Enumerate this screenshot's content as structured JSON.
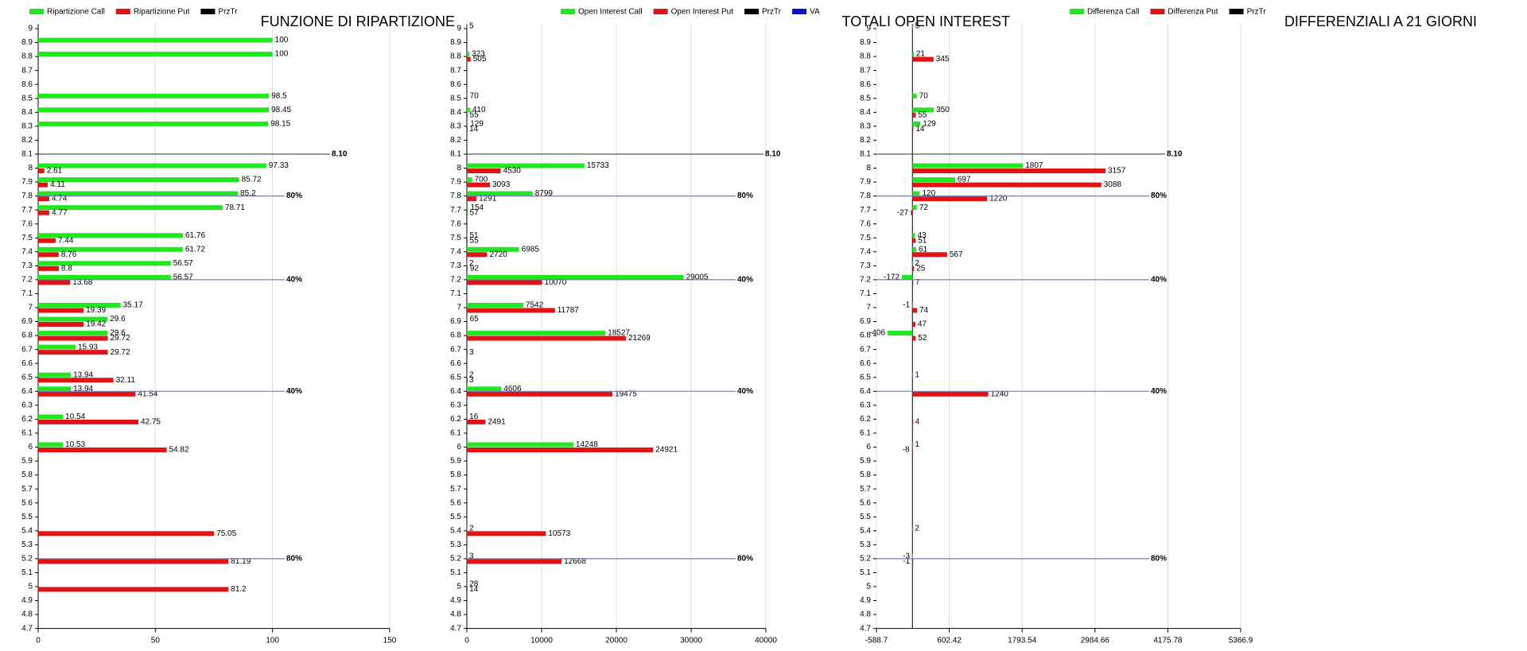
{
  "chart_data": [
    {
      "type": "bar",
      "orientation": "horizontal",
      "title": "FUNZIONE DI RIPARTIZIONE",
      "categories": [
        "9",
        "8.9",
        "8.8",
        "8.7",
        "8.6",
        "8.5",
        "8.4",
        "8.3",
        "8.2",
        "8.1",
        "8",
        "7.9",
        "7.8",
        "7.7",
        "7.6",
        "7.5",
        "7.4",
        "7.3",
        "7.2",
        "7.1",
        "7",
        "6.9",
        "6.8",
        "6.7",
        "6.6",
        "6.5",
        "6.4",
        "6.3",
        "6.2",
        "6.1",
        "6",
        "5.9",
        "5.8",
        "5.7",
        "5.6",
        "5.5",
        "5.4",
        "5.3",
        "5.2",
        "5.1",
        "5",
        "4.9",
        "4.8",
        "4.7"
      ],
      "series": [
        {
          "name": "Ripartizione Call",
          "color": "#22e622",
          "values": [
            null,
            100,
            100,
            null,
            null,
            98.5,
            98.45,
            98.15,
            null,
            null,
            97.33,
            85.72,
            85.2,
            78.71,
            null,
            61.76,
            61.72,
            56.57,
            56.57,
            null,
            35.17,
            29.6,
            29.6,
            15.93,
            null,
            13.94,
            13.94,
            null,
            10.54,
            null,
            10.53,
            null,
            null,
            null,
            null,
            null,
            null,
            null,
            null,
            null,
            null,
            null,
            null,
            null
          ]
        },
        {
          "name": "Ripartizione Put",
          "color": "#e01414",
          "values": [
            null,
            null,
            null,
            null,
            null,
            null,
            null,
            null,
            null,
            null,
            2.61,
            4.11,
            4.74,
            4.77,
            null,
            7.44,
            8.76,
            8.8,
            13.68,
            null,
            19.39,
            19.42,
            29.72,
            29.72,
            null,
            32.11,
            41.54,
            null,
            42.75,
            null,
            54.82,
            null,
            null,
            null,
            null,
            null,
            75.05,
            null,
            81.19,
            null,
            81.2,
            null,
            null,
            null
          ]
        }
      ],
      "legend_markers": [
        {
          "name": "PrzTr",
          "color": "#000000"
        }
      ],
      "xlim": [
        0,
        150
      ],
      "xticks": [
        0,
        50,
        100,
        150
      ],
      "grid": true,
      "reference_lines": [
        {
          "at": 8.1,
          "label": "8.10",
          "color": "#444444"
        },
        {
          "at": 7.8,
          "label": "80%",
          "color": "#7c7cb4"
        },
        {
          "at": 7.2,
          "label": "40%",
          "color": "#7c7cb4"
        },
        {
          "at": 6.4,
          "label": "40%",
          "color": "#7c7cb4"
        },
        {
          "at": 5.2,
          "label": "80%",
          "color": "#7c7cb4"
        }
      ]
    },
    {
      "type": "bar",
      "orientation": "horizontal",
      "title": "TOTALI OPEN INTEREST",
      "categories": [
        "9",
        "8.9",
        "8.8",
        "8.7",
        "8.6",
        "8.5",
        "8.4",
        "8.3",
        "8.2",
        "8.1",
        "8",
        "7.9",
        "7.8",
        "7.7",
        "7.6",
        "7.5",
        "7.4",
        "7.3",
        "7.2",
        "7.1",
        "7",
        "6.9",
        "6.8",
        "6.7",
        "6.6",
        "6.5",
        "6.4",
        "6.3",
        "6.2",
        "6.1",
        "6",
        "5.9",
        "5.8",
        "5.7",
        "5.6",
        "5.5",
        "5.4",
        "5.3",
        "5.2",
        "5.1",
        "5",
        "4.9",
        "4.8",
        "4.7"
      ],
      "series": [
        {
          "name": "Open Interest Call",
          "color": "#22e622",
          "values": [
            5,
            null,
            323,
            null,
            null,
            70,
            410,
            129,
            null,
            null,
            15733,
            700,
            8799,
            154,
            null,
            51,
            6985,
            2,
            29005,
            null,
            7542,
            65,
            18527,
            null,
            null,
            2,
            4606,
            null,
            16,
            null,
            14248,
            null,
            null,
            null,
            null,
            null,
            2,
            null,
            3,
            null,
            28,
            null,
            null,
            null
          ]
        },
        {
          "name": "Open Interest Put",
          "color": "#e01414",
          "values": [
            null,
            null,
            505,
            null,
            null,
            null,
            55,
            14,
            null,
            null,
            4530,
            3093,
            1291,
            57,
            null,
            55,
            2720,
            92,
            10070,
            null,
            11787,
            null,
            21269,
            3,
            null,
            3,
            19475,
            null,
            2491,
            null,
            24921,
            null,
            null,
            null,
            null,
            null,
            10573,
            null,
            12668,
            null,
            14,
            null,
            null,
            null
          ]
        }
      ],
      "legend_markers": [
        {
          "name": "PrzTr",
          "color": "#000000"
        },
        {
          "name": "VA",
          "color": "#1010cc"
        }
      ],
      "xlim": [
        0,
        40000
      ],
      "xticks": [
        0,
        10000,
        20000,
        30000,
        40000
      ],
      "grid": true,
      "reference_lines": [
        {
          "at": 8.1,
          "label": "8.10",
          "color": "#444444"
        },
        {
          "at": 7.8,
          "label": "80%",
          "color": "#7c7cb4"
        },
        {
          "at": 7.2,
          "label": "40%",
          "color": "#7c7cb4"
        },
        {
          "at": 6.4,
          "label": "40%",
          "color": "#7c7cb4"
        },
        {
          "at": 5.2,
          "label": "80%",
          "color": "#7c7cb4"
        }
      ]
    },
    {
      "type": "bar",
      "orientation": "horizontal",
      "title": "DIFFERENZIALI A 21 GIORNI",
      "categories": [
        "9",
        "8.9",
        "8.8",
        "8.7",
        "8.6",
        "8.5",
        "8.4",
        "8.3",
        "8.2",
        "8.1",
        "8",
        "7.9",
        "7.8",
        "7.7",
        "7.6",
        "7.5",
        "7.4",
        "7.3",
        "7.2",
        "7.1",
        "7",
        "6.9",
        "6.8",
        "6.7",
        "6.6",
        "6.5",
        "6.4",
        "6.3",
        "6.2",
        "6.1",
        "6",
        "5.9",
        "5.8",
        "5.7",
        "5.6",
        "5.5",
        "5.4",
        "5.3",
        "5.2",
        "5.1",
        "5",
        "4.9",
        "4.8",
        "4.7"
      ],
      "series": [
        {
          "name": "Differenza Call",
          "color": "#22e622",
          "values": [
            5,
            null,
            21,
            null,
            null,
            70,
            350,
            129,
            null,
            null,
            1807,
            697,
            120,
            72,
            null,
            43,
            61,
            2,
            -172,
            null,
            -1,
            null,
            -406,
            null,
            null,
            1,
            null,
            null,
            null,
            null,
            1,
            null,
            null,
            null,
            null,
            null,
            2,
            null,
            -3,
            null,
            null,
            null,
            null,
            null
          ]
        },
        {
          "name": "Differenza Put",
          "color": "#e01414",
          "values": [
            null,
            null,
            345,
            null,
            null,
            null,
            55,
            14,
            null,
            null,
            3157,
            3088,
            1220,
            -27,
            null,
            51,
            567,
            25,
            7,
            null,
            74,
            47,
            52,
            null,
            null,
            null,
            1240,
            null,
            4,
            null,
            -8,
            null,
            null,
            null,
            null,
            null,
            null,
            null,
            -1,
            null,
            null,
            null,
            null,
            null
          ]
        }
      ],
      "legend_markers": [
        {
          "name": "PrzTr",
          "color": "#000000"
        }
      ],
      "xlim": [
        -588.7,
        5366.9
      ],
      "xticks": [
        -588.7,
        602.42,
        1793.54,
        2984.66,
        4175.78,
        5366.9
      ],
      "grid": true,
      "reference_lines": [
        {
          "at": 8.1,
          "label": "8.10",
          "color": "#444444"
        },
        {
          "at": 7.8,
          "label": "80%",
          "color": "#7c7cb4"
        },
        {
          "at": 7.2,
          "label": "40%",
          "color": "#7c7cb4"
        },
        {
          "at": 6.4,
          "label": "40%",
          "color": "#7c7cb4"
        },
        {
          "at": 5.2,
          "label": "80%",
          "color": "#7c7cb4"
        }
      ]
    }
  ]
}
